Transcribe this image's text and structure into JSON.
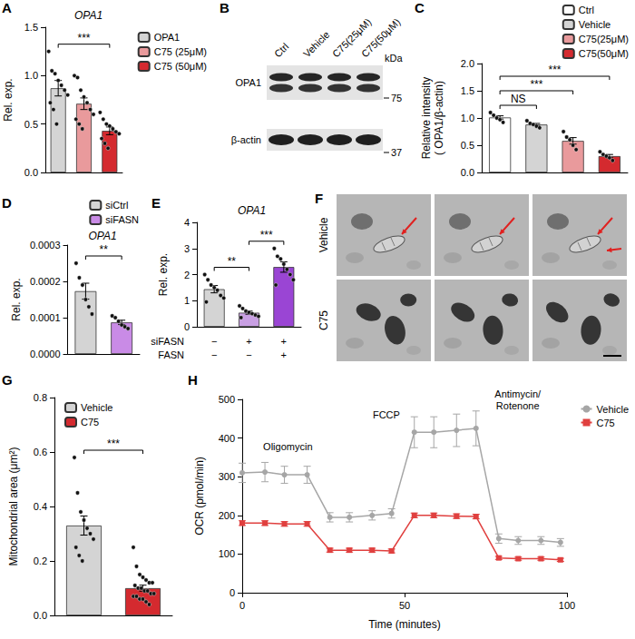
{
  "chart_data": [
    {
      "panel": "A",
      "type": "bar",
      "title": "OPA1",
      "ylabel": "Rel. exp.",
      "categories": [
        "OPA1",
        "C75 (25μM)",
        "C75 (50μM)"
      ],
      "colors": [
        "#d4d4d4",
        "#e99a9c",
        "#d42a2f"
      ],
      "values": [
        0.87,
        0.71,
        0.43
      ],
      "errors": [
        0.08,
        0.06,
        0.04
      ],
      "points": [
        [
          1.25,
          1.05,
          1.02,
          0.95,
          0.9,
          0.85,
          0.8,
          0.72,
          0.65,
          0.5
        ],
        [
          1.0,
          0.98,
          0.85,
          0.78,
          0.72,
          0.65,
          0.6,
          0.55,
          0.5,
          0.45
        ],
        [
          0.62,
          0.55,
          0.5,
          0.48,
          0.45,
          0.42,
          0.4,
          0.35,
          0.3,
          0.25
        ]
      ],
      "ylim": [
        0,
        1.5
      ],
      "yticks": [
        {
          "value": 0,
          "label": "0.0"
        },
        0.5,
        {
          "value": 1,
          "label": "1.0"
        },
        1.5
      ],
      "tick_labels": "y",
      "legend": "right",
      "annotations": [
        {
          "text": "***",
          "between": [
            0,
            2
          ]
        }
      ]
    },
    {
      "panel": "C",
      "type": "bar",
      "ylabel": "Relative intensity ( OPA1/β-actin)",
      "categories": [
        "Ctrl",
        "Vehicle",
        "C75(25μM)",
        "C75(50μM)"
      ],
      "colors": [
        "#ffffff",
        "#d4d4d4",
        "#e99a9c",
        "#d42a2f"
      ],
      "values": [
        1.01,
        0.88,
        0.58,
        0.3
      ],
      "errors": [
        0.03,
        0.02,
        0.06,
        0.03
      ],
      "points": [
        [
          1.1,
          1.05,
          1.0,
          0.97,
          0.92
        ],
        [
          0.95,
          0.9,
          0.88,
          0.85,
          0.82
        ],
        [
          0.75,
          0.65,
          0.6,
          0.5,
          0.42
        ],
        [
          0.38,
          0.33,
          0.3,
          0.27,
          0.22
        ]
      ],
      "ylim": [
        0,
        2
      ],
      "yticks": [
        {
          "value": 0,
          "label": "0.0"
        },
        0.5,
        {
          "value": 1,
          "label": "1.0"
        },
        1.5,
        {
          "value": 2,
          "label": "2.0"
        }
      ],
      "tick_labels": "y",
      "legend": "top-right",
      "annotations": [
        {
          "text": "NS",
          "between": [
            0,
            1
          ]
        },
        {
          "text": "***",
          "between": [
            0,
            2
          ]
        },
        {
          "text": "***",
          "between": [
            0,
            3
          ]
        }
      ]
    },
    {
      "panel": "D",
      "type": "bar",
      "title": "OPA1",
      "ylabel": "Rel. exp.",
      "categories": [
        "siCtrl",
        "siFASN"
      ],
      "colors": [
        "#d4d4d4",
        "#c98be6"
      ],
      "values": [
        0.000173,
        8.7e-05
      ],
      "errors": [
        2.2e-05,
        6e-06
      ],
      "points": [
        [
          0.00025,
          0.00021,
          0.00019,
          0.00015,
          0.00013,
          0.00011
        ],
        [
          0.000105,
          0.0001,
          9e-05,
          8e-05,
          7.5e-05,
          7e-05
        ]
      ],
      "ylim": [
        0,
        0.0003
      ],
      "yticks": [
        {
          "value": 0,
          "label": "0.0000"
        },
        0.0001,
        0.0002,
        0.0003
      ],
      "tick_labels": "y",
      "legend": "top-right",
      "annotations": [
        {
          "text": "**",
          "between": [
            0,
            1
          ]
        }
      ]
    },
    {
      "panel": "E",
      "type": "bar",
      "title": "OPA1",
      "ylabel": "Rel. exp.",
      "categories": [
        null,
        null,
        null
      ],
      "colors": [
        "#d4d4d4",
        "#c89fe3",
        "#9a45d4"
      ],
      "values": [
        1.44,
        0.54,
        2.29
      ],
      "errors": [
        0.14,
        0.06,
        0.2
      ],
      "points": [
        [
          2.0,
          1.8,
          1.6,
          1.5,
          1.4,
          1.2,
          1.1,
          0.95
        ],
        [
          0.8,
          0.7,
          0.6,
          0.55,
          0.5,
          0.45,
          0.4,
          0.35
        ],
        [
          3.0,
          2.7,
          2.6,
          2.4,
          2.2,
          2.0,
          1.8,
          1.6
        ]
      ],
      "ylim": [
        0,
        4
      ],
      "yticks": [
        0,
        1,
        2,
        3,
        4
      ],
      "conditions": [
        {
          "label": "siFASN",
          "marks": [
            "−",
            "+",
            "+"
          ]
        },
        {
          "label": "FASN",
          "marks": [
            "−",
            "−",
            "+"
          ]
        }
      ],
      "annotations": [
        {
          "text": "**",
          "between": [
            0,
            1
          ]
        },
        {
          "text": "***",
          "between": [
            1,
            2
          ]
        }
      ]
    },
    {
      "panel": "G",
      "type": "bar",
      "ylabel": "Mitochondrial area (μm²)",
      "categories": [
        "Vehicle",
        "C75"
      ],
      "colors": [
        "#d4d4d4",
        "#d42a2f"
      ],
      "values": [
        0.33,
        0.1
      ],
      "errors": [
        0.035,
        0.011
      ],
      "points": [
        [
          0.58,
          0.45,
          0.38,
          0.35,
          0.32,
          0.3,
          0.28,
          0.25,
          0.22,
          0.2
        ],
        [
          0.25,
          0.18,
          0.15,
          0.14,
          0.13,
          0.12,
          0.12,
          0.11,
          0.1,
          0.1,
          0.09,
          0.09,
          0.08,
          0.08,
          0.07,
          0.07,
          0.06,
          0.06,
          0.05,
          0.04
        ]
      ],
      "ylim": [
        0,
        0.8
      ],
      "yticks": [
        {
          "value": 0,
          "label": "0.0"
        },
        0.2,
        0.4,
        0.6,
        0.8
      ],
      "tick_labels": "y",
      "legend": "top-left",
      "annotations": [
        {
          "text": "***",
          "between": [
            0,
            1
          ]
        }
      ]
    },
    {
      "panel": "H",
      "type": "line",
      "xlabel": "Time (minutes)",
      "ylabel": "OCR (pmol/min)",
      "x": [
        0,
        7,
        13,
        20,
        27,
        33,
        40,
        46,
        53,
        59,
        66,
        72,
        79,
        85,
        92,
        98
      ],
      "series": [
        {
          "name": "Vehicle",
          "color": "#a6a6a6",
          "marker": "circle",
          "values": [
            310,
            312,
            305,
            305,
            195,
            195,
            200,
            205,
            415,
            415,
            420,
            425,
            140,
            135,
            135,
            130
          ],
          "errors": [
            25,
            25,
            22,
            22,
            12,
            12,
            12,
            12,
            40,
            40,
            42,
            45,
            12,
            10,
            10,
            10
          ]
        },
        {
          "name": "C75",
          "color": "#e0403f",
          "marker": "square",
          "values": [
            180,
            180,
            178,
            178,
            110,
            110,
            110,
            108,
            200,
            200,
            198,
            197,
            90,
            88,
            88,
            85
          ],
          "errors": [
            6,
            6,
            6,
            6,
            5,
            5,
            5,
            5,
            6,
            6,
            6,
            6,
            4,
            4,
            4,
            4
          ]
        }
      ],
      "xlim": [
        0,
        100
      ],
      "xticks": [
        0,
        50,
        100
      ],
      "ylim": [
        0,
        500
      ],
      "yticks": [
        0,
        100,
        200,
        300,
        400,
        500
      ],
      "legend": "right",
      "annotations": [
        {
          "text": "Oligomycin"
        },
        {
          "text": "FCCP"
        },
        {
          "text": "Antimycin/Rotenone"
        }
      ]
    }
  ],
  "blot": {
    "panel": "B",
    "lanes": [
      "Ctrl",
      "Vehicle",
      "C75(25μM)",
      "C75(50μM)"
    ],
    "rows": [
      "OPA1",
      "β-actin"
    ],
    "marker_unit": "kDa",
    "markers": [
      75,
      37
    ]
  },
  "micrographs": {
    "panel": "F",
    "rows": [
      "Vehicle",
      "C75"
    ]
  }
}
